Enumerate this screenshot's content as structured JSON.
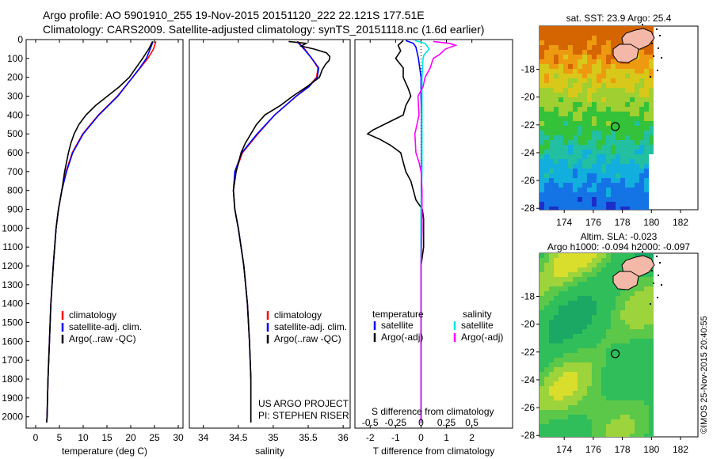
{
  "header": {
    "line1": "Argo profile: AO 5901910_255 19-Nov-2015 20151120_222 22.121S 177.51E",
    "line2": "Climatology: CARS2009. Satellite-adjusted climatology: synTS_20151118.nc (1.6d earlier)"
  },
  "credit": "©IMOS 25-Nov-2015 20:40:55",
  "colors": {
    "climatology": "#ff0000",
    "satellite": "#0000ff",
    "argo": "#000000",
    "sat_salinity": "#00e5e5",
    "argo_salinity": "#ff00ff"
  },
  "chart_data": [
    {
      "type": "line",
      "name": "temperature-profile",
      "xlabel": "temperature (deg C)",
      "xlim": [
        -2,
        31
      ],
      "ylim": [
        2060,
        0
      ],
      "y_reversed": true,
      "xticks": [
        0,
        5,
        10,
        15,
        20,
        25,
        30
      ],
      "yticks": [
        0,
        100,
        200,
        300,
        400,
        500,
        600,
        700,
        800,
        900,
        1000,
        1100,
        1200,
        1300,
        1400,
        1500,
        1600,
        1700,
        1800,
        1900,
        2000
      ],
      "legend": [
        "climatology",
        "satellite-adj. clim.",
        "Argo(..raw -QC)"
      ],
      "legend_position": "lower-middle",
      "series": [
        {
          "name": "climatology",
          "color": "#ff0000",
          "depth": [
            10,
            50,
            100,
            150,
            200,
            300,
            400,
            500,
            600,
            700,
            800,
            900,
            1000,
            1200,
            1400,
            1600,
            1800,
            2000,
            2030
          ],
          "values": [
            25.3,
            24.8,
            23.6,
            22.0,
            20.4,
            17.2,
            13.2,
            9.9,
            7.7,
            6.4,
            5.5,
            4.8,
            4.3,
            3.7,
            3.2,
            2.9,
            2.6,
            2.4,
            2.3
          ]
        },
        {
          "name": "satellite-adj. clim.",
          "color": "#0000ff",
          "depth": [
            10,
            50,
            100,
            150,
            200,
            300,
            400,
            500,
            600,
            700,
            800,
            900,
            1000,
            1200,
            1400,
            1600,
            1800,
            2000,
            2030
          ],
          "values": [
            24.7,
            24.1,
            23.3,
            21.9,
            20.4,
            17.3,
            13.3,
            10.0,
            7.8,
            6.5,
            5.5,
            4.8,
            4.3,
            3.7,
            3.2,
            2.9,
            2.6,
            2.4,
            2.3
          ]
        },
        {
          "name": "Argo(..raw -QC)",
          "color": "#000000",
          "depth": [
            10,
            50,
            100,
            150,
            200,
            250,
            300,
            350,
            400,
            450,
            500,
            550,
            600,
            700,
            800,
            900,
            1000,
            1200,
            1400,
            1600,
            1800,
            2000,
            2030
          ],
          "values": [
            24.6,
            23.8,
            22.5,
            21.1,
            19.7,
            17.6,
            15.1,
            12.6,
            10.6,
            9.1,
            8.1,
            7.4,
            6.9,
            6.1,
            5.5,
            4.8,
            4.3,
            3.7,
            3.2,
            2.9,
            2.6,
            2.4,
            2.3
          ]
        }
      ],
      "annotations": []
    },
    {
      "type": "line",
      "name": "salinity-profile",
      "xlabel": "salinity",
      "xlim": [
        33.8,
        36.1
      ],
      "ylim": [
        2060,
        0
      ],
      "y_reversed": true,
      "xticks": [
        34,
        34.5,
        35,
        35.5,
        36
      ],
      "legend": [
        "climatology",
        "satellite-adj. clim.",
        "Argo(..raw -QC)"
      ],
      "legend_position": "lower-right",
      "series": [
        {
          "name": "climatology",
          "color": "#ff0000",
          "depth": [
            10,
            30,
            50,
            100,
            150,
            200,
            250,
            300,
            400,
            500,
            600,
            700,
            800,
            900,
            1000,
            1200,
            1400,
            1600,
            1800,
            2000,
            2030
          ],
          "values": [
            35.35,
            35.4,
            35.45,
            35.55,
            35.64,
            35.62,
            35.5,
            35.33,
            35.02,
            34.78,
            34.56,
            34.46,
            34.43,
            34.45,
            34.5,
            34.58,
            34.63,
            34.66,
            34.68,
            34.68,
            34.68
          ]
        },
        {
          "name": "satellite-adj. clim.",
          "color": "#0000ff",
          "depth": [
            10,
            30,
            50,
            100,
            150,
            200,
            250,
            300,
            400,
            500,
            600,
            700,
            800,
            900,
            1000,
            1200,
            1400,
            1600,
            1800,
            2000,
            2030
          ],
          "values": [
            35.34,
            35.39,
            35.44,
            35.55,
            35.65,
            35.63,
            35.51,
            35.33,
            35.02,
            34.77,
            34.55,
            34.45,
            34.43,
            34.45,
            34.5,
            34.58,
            34.63,
            34.66,
            34.68,
            34.68,
            34.68
          ]
        },
        {
          "name": "Argo(..raw -QC)",
          "color": "#000000",
          "depth": [
            10,
            20,
            35,
            50,
            70,
            90,
            110,
            130,
            160,
            200,
            250,
            300,
            350,
            400,
            450,
            500,
            550,
            600,
            700,
            800,
            900,
            1000,
            1200,
            1400,
            1600,
            1800,
            2000,
            2030
          ],
          "values": [
            35.22,
            35.47,
            35.4,
            35.58,
            35.76,
            35.81,
            35.8,
            35.75,
            35.7,
            35.66,
            35.48,
            35.28,
            35.1,
            34.88,
            34.76,
            34.68,
            34.6,
            34.54,
            34.47,
            34.43,
            34.45,
            34.5,
            34.58,
            34.63,
            34.66,
            34.68,
            34.68,
            34.68
          ]
        }
      ],
      "annotations": [
        "US ARGO PROJECT",
        "PI: STEPHEN RISER"
      ]
    },
    {
      "type": "line",
      "name": "difference-profile",
      "xlabel": "T difference from climatology",
      "x2label": "S difference from climatology",
      "xlim": [
        -2.6,
        3.6
      ],
      "ylim": [
        2060,
        0
      ],
      "y_reversed": true,
      "xticks": [
        -2,
        -1,
        0,
        1,
        2
      ],
      "x2ticks": [
        "-0.5",
        "-0.25",
        "0",
        "0.25",
        "0.5"
      ],
      "x2_values": [
        -0.5,
        -0.25,
        0,
        0.25,
        0.5
      ],
      "legend_headers": [
        "temperature",
        "salinity"
      ],
      "legend": [
        "satellite",
        "Argo(-adj)",
        "satellite",
        "Argo(-adj)"
      ],
      "series": [
        {
          "name": "temperature satellite",
          "color": "#0000ff",
          "depth": [
            5,
            20,
            40,
            70,
            100,
            150,
            200,
            300,
            400,
            600,
            800,
            1000,
            1200,
            1600,
            2030
          ],
          "values": [
            -0.6,
            -0.3,
            -0.2,
            -0.15,
            -0.1,
            -0.05,
            0,
            0,
            0.02,
            0.02,
            0.01,
            0,
            0,
            0,
            0
          ]
        },
        {
          "name": "temperature Argo(-adj)",
          "color": "#000000",
          "depth": [
            5,
            30,
            60,
            100,
            150,
            200,
            260,
            300,
            350,
            400,
            440,
            480,
            500,
            530,
            560,
            600,
            650,
            700,
            750,
            800,
            850,
            900,
            950,
            1000,
            1100,
            1200,
            1400,
            1600,
            1800,
            2030
          ],
          "values": [
            -0.7,
            -0.9,
            -0.8,
            -1.0,
            -0.7,
            -0.7,
            -0.5,
            -0.4,
            -0.6,
            -0.7,
            -1.3,
            -1.9,
            -2.1,
            -1.6,
            -1.2,
            -0.8,
            -0.7,
            -0.6,
            -0.4,
            -0.3,
            -0.2,
            0.05,
            0.1,
            0.1,
            0.1,
            0,
            0,
            0,
            0,
            0
          ]
        },
        {
          "name": "salinity satellite",
          "color": "#00e5e5",
          "depth": [
            5,
            20,
            50,
            80,
            100,
            200,
            300,
            500,
            700,
            900,
            1200,
            1600,
            2030
          ],
          "values": [
            -0.06,
            0.04,
            0.08,
            0.03,
            0.02,
            0.01,
            0.01,
            0.01,
            0.01,
            0,
            0,
            0,
            0
          ]
        },
        {
          "name": "salinity Argo(-adj)",
          "color": "#ff00ff",
          "depth": [
            10,
            20,
            30,
            50,
            80,
            100,
            150,
            200,
            250,
            300,
            400,
            500,
            600,
            650,
            700,
            800,
            900,
            1000,
            1200,
            1600,
            2030
          ],
          "values": [
            0.12,
            0.28,
            0.34,
            0.24,
            0.18,
            0.12,
            0.09,
            0.04,
            0.02,
            -0.03,
            -0.02,
            -0.06,
            -0.05,
            -0.02,
            0,
            0.01,
            0.01,
            0.01,
            0,
            0,
            0
          ]
        }
      ]
    },
    {
      "type": "heatmap",
      "name": "sst-map",
      "title": "sat. SST: 23.9  Argo: 25.4",
      "xlim": [
        172.3,
        183.2
      ],
      "ylim": [
        -28.1,
        -14.9
      ],
      "xticks": [
        174,
        176,
        178,
        180,
        182
      ],
      "yticks": [
        -18,
        -20,
        -22,
        -24,
        -26,
        -28
      ],
      "marker": {
        "lon": 177.51,
        "lat": -22.121
      }
    },
    {
      "type": "heatmap",
      "name": "sla-map",
      "title": "Altim. SLA: -0.023",
      "subtitle": "Argo h1000: -0.094 h2000: -0.097",
      "xlim": [
        172.3,
        183.2
      ],
      "ylim": [
        -28.1,
        -14.9
      ],
      "xticks": [
        174,
        176,
        178,
        180,
        182
      ],
      "yticks": [
        -18,
        -20,
        -22,
        -24,
        -26,
        -28
      ],
      "marker": {
        "lon": 177.51,
        "lat": -22.121
      }
    }
  ]
}
